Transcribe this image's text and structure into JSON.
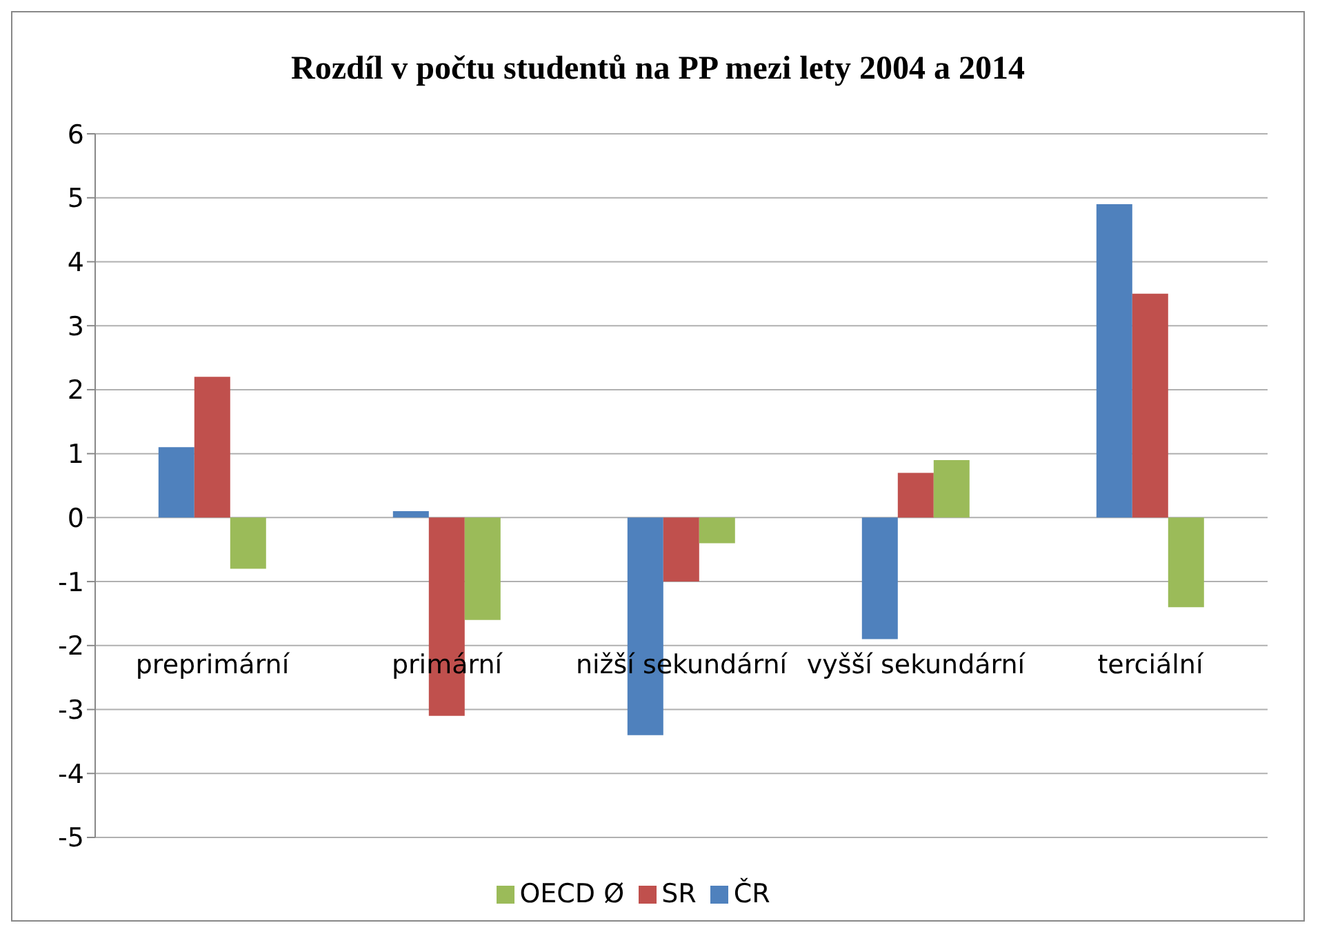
{
  "chart_data": {
    "type": "bar",
    "title": "Rozdíl v počtu studentů na PP mezi lety 2004 a 2014",
    "categories": [
      "preprimární",
      "primární",
      "nižší sekundární",
      "vyšší sekundární",
      "terciální"
    ],
    "series": [
      {
        "name": "ČR",
        "color": "#4f81bd",
        "values": [
          1.1,
          0.1,
          -3.4,
          -1.9,
          4.9
        ]
      },
      {
        "name": "SR",
        "color": "#c0504d",
        "values": [
          2.2,
          -3.1,
          -1.0,
          0.7,
          3.5
        ]
      },
      {
        "name": "OECD Ø",
        "color": "#9bbb59",
        "values": [
          -0.8,
          -1.6,
          -0.4,
          0.9,
          -1.4
        ]
      }
    ],
    "ylim": [
      -5,
      6
    ],
    "yticks": [
      -5,
      -4,
      -3,
      -2,
      -1,
      0,
      1,
      2,
      3,
      4,
      5,
      6
    ],
    "grid": "y",
    "legend": "bottom"
  }
}
